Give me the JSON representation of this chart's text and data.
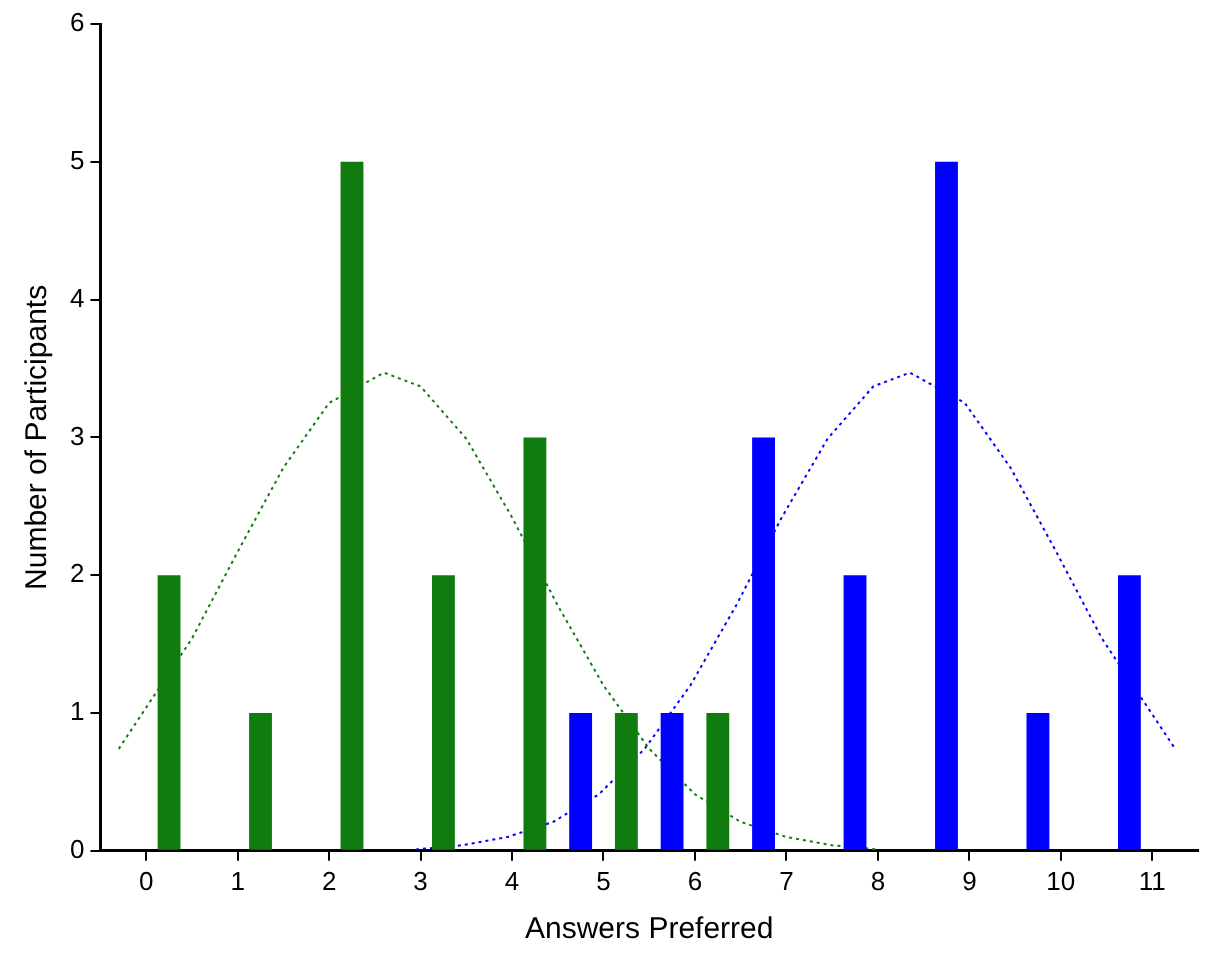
{
  "chart_data": {
    "type": "bar",
    "xlabel": "Answers Preferred",
    "ylabel": "Number of Participants",
    "x": [
      0,
      1,
      2,
      3,
      4,
      5,
      6,
      7,
      8,
      9,
      10,
      11
    ],
    "xlim": [
      -0.5,
      11.5
    ],
    "xticks": [
      0,
      1,
      2,
      3,
      4,
      5,
      6,
      7,
      8,
      9,
      10,
      11
    ],
    "ylim": [
      0,
      6
    ],
    "yticks": [
      0,
      1,
      2,
      3,
      4,
      5,
      6
    ],
    "grid": false,
    "legend": false,
    "series": [
      {
        "color": "#0000ff",
        "values": [
          0,
          0,
          0,
          0,
          0,
          1,
          1,
          3,
          2,
          5,
          1,
          2
        ]
      },
      {
        "color": "#107c10",
        "values": [
          2,
          1,
          5,
          2,
          3,
          1,
          1,
          0,
          0,
          0,
          0,
          0
        ]
      },
      {
        "type": "line",
        "color": "#107c10",
        "line_style": "dotted",
        "marker": "none",
        "x": [
          -0.3,
          0.5,
          1,
          1.5,
          2,
          2.6,
          3,
          3.5,
          4,
          4.5,
          5,
          5.5,
          6,
          6.5,
          7,
          7.5,
          8
        ],
        "values": [
          0.74,
          1.54,
          2.17,
          2.78,
          3.25,
          3.47,
          3.37,
          2.99,
          2.42,
          1.78,
          1.2,
          0.74,
          0.41,
          0.21,
          0.1,
          0.04,
          0.01
        ]
      },
      {
        "type": "line",
        "color": "#0000ff",
        "line_style": "dotted",
        "marker": "none",
        "x": [
          2.95,
          3.45,
          3.95,
          4.45,
          4.95,
          5.45,
          5.95,
          6.45,
          6.95,
          7.45,
          7.95,
          8.35,
          8.95,
          9.45,
          9.95,
          10.45,
          11.25
        ],
        "values": [
          0.01,
          0.04,
          0.1,
          0.21,
          0.41,
          0.74,
          1.2,
          1.78,
          2.42,
          2.99,
          3.37,
          3.47,
          3.25,
          2.78,
          2.17,
          1.54,
          0.74
        ]
      }
    ]
  }
}
